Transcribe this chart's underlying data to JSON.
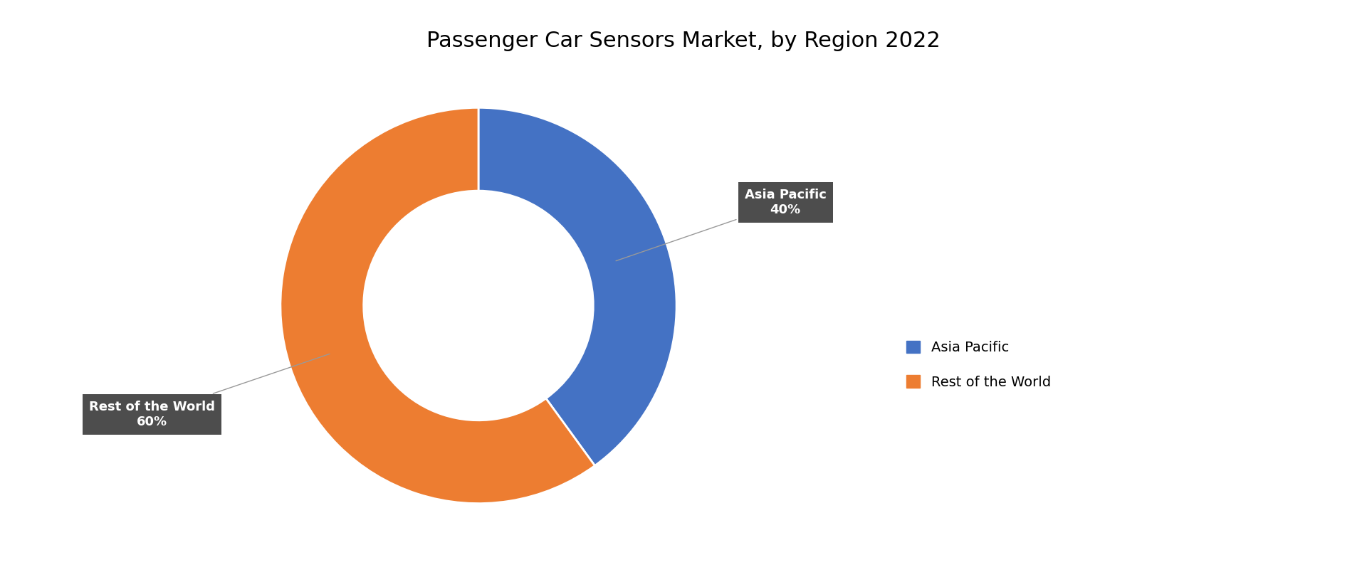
{
  "title": "Passenger Car Sensors Market, by Region 2022",
  "title_fontsize": 22,
  "title_fontweight": "normal",
  "labels": [
    "Asia Pacific",
    "Rest of the World"
  ],
  "values": [
    40,
    60
  ],
  "colors": [
    "#4472C4",
    "#ED7D31"
  ],
  "legend_labels": [
    "Asia Pacific",
    "Rest of the World"
  ],
  "annotation_asia_pacific": "Asia Pacific\n40%",
  "annotation_rest": "Rest of the World\n60%",
  "annotation_box_color": "#3a3a3a",
  "annotation_text_color": "#ffffff",
  "background_color": "#ffffff",
  "donut_width": 0.42,
  "start_angle": 90
}
